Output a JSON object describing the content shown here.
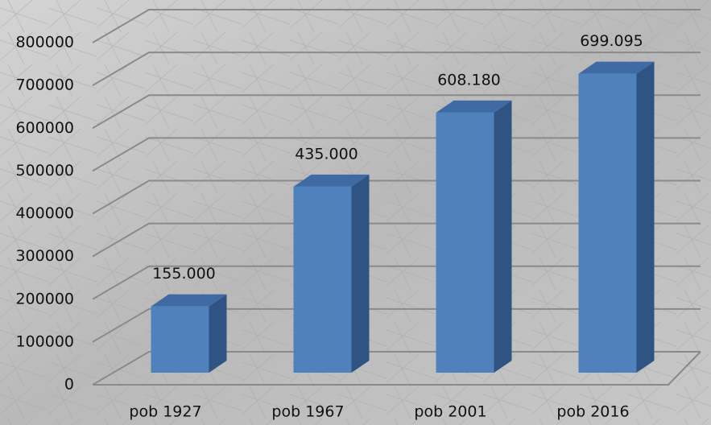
{
  "chart_data": {
    "type": "bar",
    "categories": [
      "pob 1927",
      "pob 1967",
      "pob 2001",
      "pob 2016"
    ],
    "values": [
      155000,
      435000,
      608180,
      699095
    ],
    "value_labels": [
      "155.000",
      "435.000",
      "608.180",
      "699.095"
    ],
    "color": "#4f81bd",
    "ylim": [
      0,
      800000
    ],
    "yticks": [
      0,
      100000,
      200000,
      300000,
      400000,
      500000,
      600000,
      700000,
      800000
    ],
    "grid": true
  }
}
